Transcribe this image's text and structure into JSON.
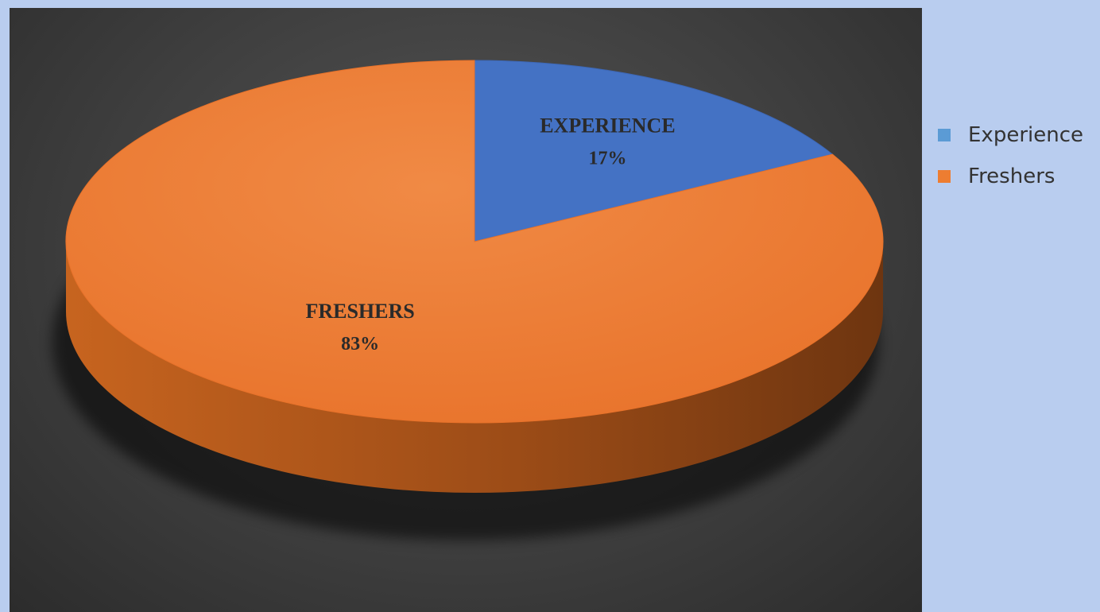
{
  "chart_data": {
    "type": "pie",
    "categories": [
      "Experience",
      "Freshers"
    ],
    "values": [
      17,
      83
    ],
    "slice_labels": [
      {
        "name": "EXPERIENCE",
        "percent": "17%"
      },
      {
        "name": "FRESHERS",
        "percent": "83%"
      }
    ],
    "colors": [
      "#4472c4",
      "#ed7d31"
    ],
    "legend": {
      "position": "right",
      "entries": [
        "Experience",
        "Freshers"
      ],
      "colors": [
        "#5b9bd5",
        "#ed7d31"
      ]
    },
    "style": "3d",
    "background": "#404040"
  }
}
